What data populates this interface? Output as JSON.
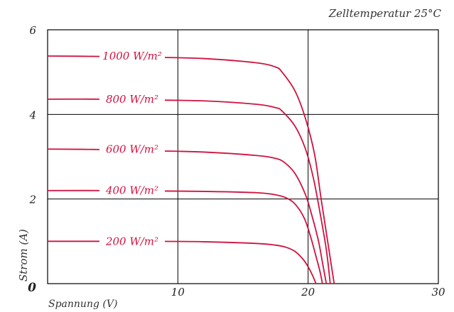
{
  "chart_data": {
    "type": "line",
    "title": "",
    "subtitle": "Zelltemperatur 25°C",
    "xlabel": "Spannung (V)",
    "ylabel": "Strom (A)",
    "xlim": [
      0,
      30
    ],
    "ylim": [
      0,
      6
    ],
    "xticks": [
      0,
      10,
      20,
      30
    ],
    "yticks": [
      0,
      2,
      4,
      6
    ],
    "xtick_labels": [
      "0",
      "10",
      "20",
      "30"
    ],
    "ytick_labels": [
      "0",
      "2",
      "4",
      "6"
    ],
    "grid": true,
    "legend": "inline",
    "series_color": "#d0123f",
    "series": [
      {
        "name": "1000 W/m²",
        "x": [
          0,
          4,
          8,
          12,
          16,
          17.5,
          18,
          19,
          19.8,
          20.5,
          21,
          21.5,
          22
        ],
        "y": [
          5.38,
          5.37,
          5.35,
          5.32,
          5.22,
          5.12,
          5.0,
          4.55,
          3.9,
          3.05,
          2.0,
          1.0,
          0
        ]
      },
      {
        "name": "800 W/m²",
        "x": [
          0,
          4,
          8,
          12,
          16,
          17.5,
          18,
          19,
          19.8,
          20.4,
          20.9,
          21.4,
          21.7
        ],
        "y": [
          4.36,
          4.36,
          4.34,
          4.32,
          4.24,
          4.16,
          4.08,
          3.72,
          3.18,
          2.5,
          1.7,
          0.8,
          0
        ]
      },
      {
        "name": "600 W/m²",
        "x": [
          0,
          4,
          8,
          12,
          16,
          17.5,
          18.2,
          19,
          19.8,
          20.3,
          20.8,
          21.1,
          21.4
        ],
        "y": [
          3.18,
          3.17,
          3.14,
          3.11,
          3.03,
          2.96,
          2.86,
          2.6,
          2.1,
          1.6,
          1.0,
          0.5,
          0
        ]
      },
      {
        "name": "400 W/m²",
        "x": [
          0,
          4,
          8,
          12,
          16,
          17.5,
          18.3,
          19,
          19.7,
          20.2,
          20.6,
          20.9,
          21.1
        ],
        "y": [
          2.2,
          2.2,
          2.19,
          2.18,
          2.15,
          2.1,
          2.03,
          1.88,
          1.55,
          1.1,
          0.65,
          0.3,
          0
        ]
      },
      {
        "name": "200 W/m²",
        "x": [
          0,
          4,
          8,
          12,
          16,
          17.5,
          18.3,
          19,
          19.6,
          20,
          20.3,
          20.5,
          20.6
        ],
        "y": [
          1.0,
          1.0,
          1.0,
          0.99,
          0.95,
          0.91,
          0.86,
          0.76,
          0.58,
          0.4,
          0.22,
          0.08,
          0
        ]
      }
    ]
  }
}
